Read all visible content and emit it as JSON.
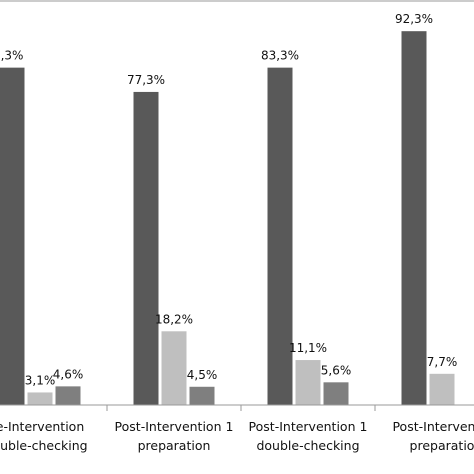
{
  "chart_data": {
    "type": "bar",
    "categories": [
      [
        "e-Intervention",
        "ouble-checking"
      ],
      [
        "Post-Intervention 1",
        "preparation"
      ],
      [
        "Post-Intervention 1",
        "double-checking"
      ],
      [
        "Post-Interventio",
        "preparatio"
      ]
    ],
    "series": [
      {
        "values": [
          83.3,
          77.3,
          83.3,
          92.3
        ],
        "labels": [
          ",3%",
          "77,3%",
          "83,3%",
          "92,3%"
        ],
        "color": "#595959"
      },
      {
        "values": [
          3.1,
          18.2,
          11.1,
          7.7
        ],
        "labels": [
          "3,1%",
          "18,2%",
          "11,1%",
          "7,7%"
        ],
        "color": "#bfbfbf"
      },
      {
        "values": [
          4.6,
          4.5,
          5.6,
          null
        ],
        "labels": [
          "4,6%",
          "4,5%",
          "5,6%",
          ""
        ],
        "color": "#7f7f7f"
      }
    ],
    "ylim": [
      0,
      100
    ],
    "grid": false,
    "legend": "none"
  }
}
